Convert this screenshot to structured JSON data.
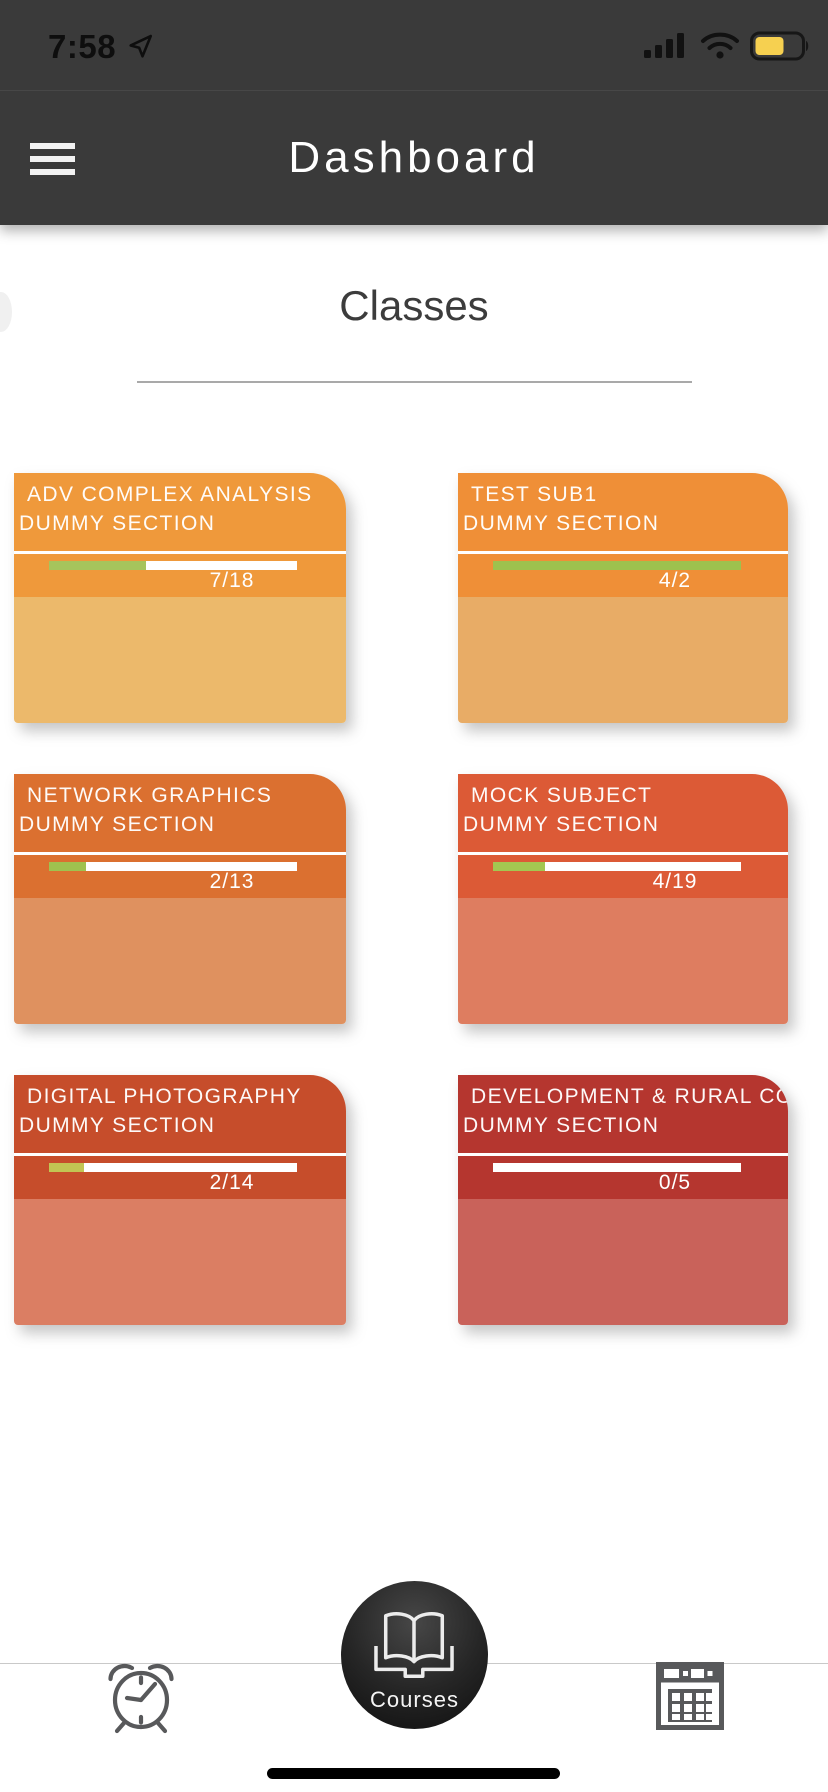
{
  "status_bar": {
    "time": "7:58",
    "battery_level_percent": 60,
    "icons": [
      "location-arrow-icon",
      "cellular-signal-icon",
      "wifi-icon",
      "battery-icon"
    ]
  },
  "header": {
    "title": "Dashboard",
    "menu_icon": "hamburger-menu-icon"
  },
  "content": {
    "section_title": "Classes"
  },
  "cards": [
    {
      "title": "ADV COMPLEX ANALYSIS",
      "section": "DUMMY SECTION",
      "progress_label": "7/18",
      "progress_percent": 39,
      "header_color": "#EF993B",
      "body_color": "#ECB96B",
      "bar_color": "#A6C45C"
    },
    {
      "title": "TEST SUB1",
      "section": "DUMMY SECTION",
      "progress_label": "4/2",
      "progress_percent": 100,
      "header_color": "#EF8F37",
      "body_color": "#E8AC66",
      "bar_color": "#9DC14E"
    },
    {
      "title": "NETWORK GRAPHICS",
      "section": "DUMMY SECTION",
      "progress_label": "2/13",
      "progress_percent": 15,
      "header_color": "#DB7030",
      "body_color": "#DF915F",
      "bar_color": "#9FC24F"
    },
    {
      "title": "MOCK SUBJECT",
      "section": "DUMMY SECTION",
      "progress_label": "4/19",
      "progress_percent": 21,
      "header_color": "#DC5A36",
      "body_color": "#DE7D60",
      "bar_color": "#A3C751"
    },
    {
      "title": "DIGITAL PHOTOGRAPHY",
      "section": "DUMMY SECTION",
      "progress_label": "2/14",
      "progress_percent": 14,
      "header_color": "#C64D2B",
      "body_color": "#DB7E63",
      "bar_color": "#C2C553"
    },
    {
      "title": "DEVELOPMENT & RURAL CO...",
      "section": "DUMMY SECTION",
      "progress_label": "0/5",
      "progress_percent": 0,
      "header_color": "#B5362F",
      "body_color": "#C9625A",
      "bar_color": "#A6C45C"
    }
  ],
  "bottom_nav": {
    "items": [
      {
        "icon": "alarm-clock-icon",
        "label": ""
      },
      {
        "icon": "open-book-icon",
        "label": "Courses"
      },
      {
        "icon": "calendar-icon",
        "label": ""
      }
    ]
  },
  "colors": {
    "app_bar_background": "#3A3A3A",
    "progress_track": "#FFFFFF",
    "battery_fill": "#F6D050",
    "nav_icon": "#58595B",
    "nav_hairline": "#C9C9C9"
  }
}
